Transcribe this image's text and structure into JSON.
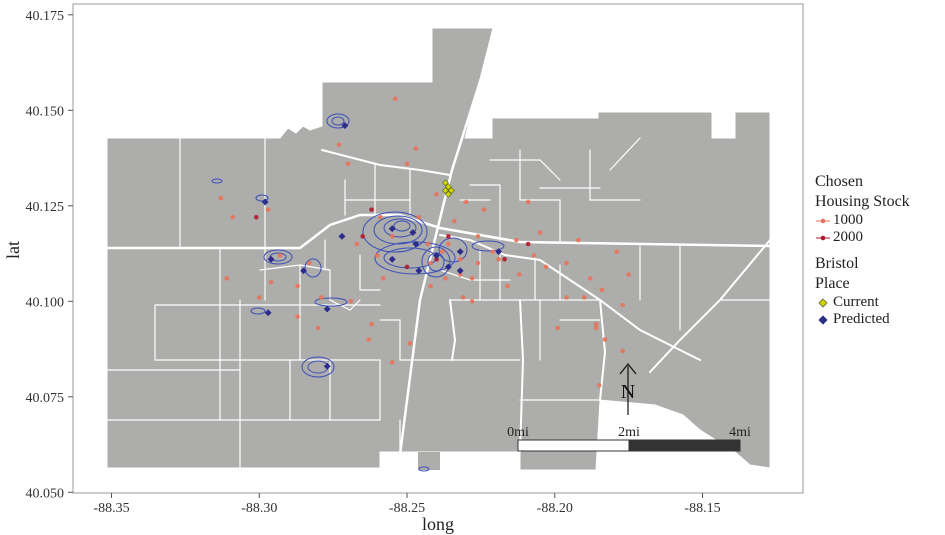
{
  "axes": {
    "xlabel": "long",
    "ylabel": "lat",
    "xticks": [
      "-88.35",
      "-88.30",
      "-88.25",
      "-88.20",
      "-88.15"
    ],
    "yticks": [
      "40.175",
      "40.150",
      "40.125",
      "40.100",
      "40.075",
      "40.050"
    ]
  },
  "legend": {
    "housing_title_1": "Chosen",
    "housing_title_2": "Housing Stock",
    "housing_items": [
      {
        "label": "1000",
        "color": "#e8735a"
      },
      {
        "label": "2000",
        "color": "#b2182b"
      }
    ],
    "place_title_1": "Bristol",
    "place_title_2": "Place",
    "place_items": [
      {
        "label": "Current",
        "color": "#d4d400"
      },
      {
        "label": "Predicted",
        "color": "#2c2c8c"
      }
    ]
  },
  "scalebar": {
    "labels": [
      "0mi",
      "2mi",
      "4mi"
    ]
  },
  "north_arrow": {
    "label": "N"
  },
  "colors": {
    "land": "#adadab",
    "roads": "#ffffff",
    "contour": "#3b4fb8",
    "panel_border": "#9a9a9a"
  },
  "chart_data": {
    "type": "scatter",
    "xlabel": "long",
    "ylabel": "lat",
    "xlim": [
      -88.36,
      -88.12
    ],
    "ylim": [
      40.05,
      40.176
    ],
    "series": [
      {
        "name": "1000",
        "points": [
          [
            -88.254,
            40.153
          ],
          [
            -88.273,
            40.141
          ],
          [
            -88.27,
            40.136
          ],
          [
            -88.313,
            40.127
          ],
          [
            -88.309,
            40.122
          ],
          [
            -88.297,
            40.124
          ],
          [
            -88.293,
            40.112
          ],
          [
            -88.296,
            40.105
          ],
          [
            -88.3,
            40.101
          ],
          [
            -88.311,
            40.106
          ],
          [
            -88.287,
            40.104
          ],
          [
            -88.283,
            40.11
          ],
          [
            -88.279,
            40.101
          ],
          [
            -88.28,
            40.093
          ],
          [
            -88.262,
            40.094
          ],
          [
            -88.269,
            40.1
          ],
          [
            -88.258,
            40.106
          ],
          [
            -88.255,
            40.117
          ],
          [
            -88.259,
            40.122
          ],
          [
            -88.267,
            40.115
          ],
          [
            -88.246,
            40.122
          ],
          [
            -88.243,
            40.115
          ],
          [
            -88.24,
            40.128
          ],
          [
            -88.236,
            40.115
          ],
          [
            -88.232,
            40.111
          ],
          [
            -88.228,
            40.106
          ],
          [
            -88.226,
            40.117
          ],
          [
            -88.224,
            40.124
          ],
          [
            -88.23,
            40.126
          ],
          [
            -88.219,
            40.111
          ],
          [
            -88.216,
            40.104
          ],
          [
            -88.207,
            40.112
          ],
          [
            -88.203,
            40.109
          ],
          [
            -88.205,
            40.118
          ],
          [
            -88.209,
            40.126
          ],
          [
            -88.212,
            40.107
          ],
          [
            -88.196,
            40.11
          ],
          [
            -88.192,
            40.116
          ],
          [
            -88.188,
            40.106
          ],
          [
            -88.184,
            40.103
          ],
          [
            -88.179,
            40.113
          ],
          [
            -88.175,
            40.107
          ],
          [
            -88.19,
            40.101
          ],
          [
            -88.186,
            40.093
          ],
          [
            -88.199,
            40.093
          ],
          [
            -88.183,
            40.09
          ],
          [
            -88.177,
            40.087
          ],
          [
            -88.185,
            40.078
          ],
          [
            -88.231,
            40.101
          ],
          [
            -88.249,
            40.089
          ],
          [
            -88.255,
            40.084
          ],
          [
            -88.263,
            40.09
          ],
          [
            -88.287,
            40.096
          ],
          [
            -88.242,
            40.104
          ],
          [
            -88.234,
            40.121
          ],
          [
            -88.25,
            40.136
          ],
          [
            -88.247,
            40.14
          ],
          [
            -88.232,
            40.107
          ],
          [
            -88.242,
            40.11
          ],
          [
            -88.26,
            40.112
          ],
          [
            -88.237,
            40.106
          ],
          [
            -88.226,
            40.11
          ],
          [
            -88.221,
            40.113
          ],
          [
            -88.213,
            40.116
          ],
          [
            -88.196,
            40.101
          ],
          [
            -88.177,
            40.099
          ],
          [
            -88.186,
            40.094
          ],
          [
            -88.238,
            40.113
          ],
          [
            -88.228,
            40.1
          ]
        ]
      },
      {
        "name": "2000",
        "points": [
          [
            -88.301,
            40.122
          ],
          [
            -88.262,
            40.124
          ],
          [
            -88.265,
            40.117
          ],
          [
            -88.25,
            40.109
          ],
          [
            -88.24,
            40.111
          ],
          [
            -88.217,
            40.111
          ],
          [
            -88.209,
            40.115
          ],
          [
            -88.236,
            40.117
          ]
        ]
      },
      {
        "name": "Current",
        "points": [
          [
            -88.236,
            40.13
          ],
          [
            -88.237,
            40.129
          ],
          [
            -88.235,
            40.129
          ],
          [
            -88.236,
            40.128
          ],
          [
            -88.237,
            40.131
          ]
        ]
      },
      {
        "name": "Predicted",
        "points": [
          [
            -88.271,
            40.146
          ],
          [
            -88.255,
            40.119
          ],
          [
            -88.247,
            40.115
          ],
          [
            -88.24,
            40.112
          ],
          [
            -88.246,
            40.108
          ],
          [
            -88.236,
            40.109
          ],
          [
            -88.232,
            40.108
          ],
          [
            -88.219,
            40.113
          ],
          [
            -88.298,
            40.126
          ],
          [
            -88.296,
            40.111
          ],
          [
            -88.285,
            40.108
          ],
          [
            -88.297,
            40.097
          ],
          [
            -88.277,
            40.098
          ],
          [
            -88.277,
            40.083
          ],
          [
            -88.272,
            40.117
          ],
          [
            -88.255,
            40.111
          ],
          [
            -88.248,
            40.118
          ],
          [
            -88.232,
            40.113
          ]
        ]
      }
    ]
  }
}
